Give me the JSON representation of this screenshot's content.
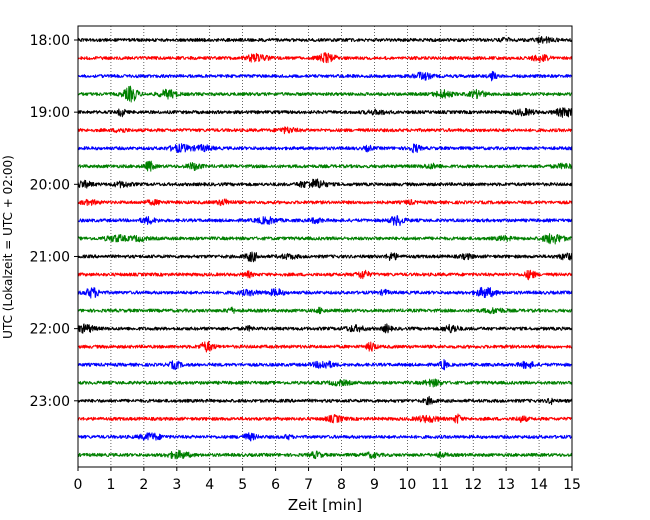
{
  "chart_data": {
    "type": "line",
    "title": "",
    "xlabel": "Zeit  [min]",
    "ylabel": "UTC (Lokalzeit = UTC + 02:00)",
    "xlim": [
      0,
      15
    ],
    "x_ticks": [
      0,
      1,
      2,
      3,
      4,
      5,
      6,
      7,
      8,
      9,
      10,
      11,
      12,
      13,
      14,
      15
    ],
    "grid": "vertical, dotted",
    "y_ticks": [
      "18:00",
      "19:00",
      "20:00",
      "21:00",
      "22:00",
      "23:00"
    ],
    "trace_interval_minutes": 15,
    "trace_colors": [
      "#000000",
      "#ff0000",
      "#0000ff",
      "#008000"
    ],
    "traces": [
      {
        "start": "18:00",
        "color": "#000000"
      },
      {
        "start": "18:15",
        "color": "#ff0000"
      },
      {
        "start": "18:30",
        "color": "#0000ff"
      },
      {
        "start": "18:45",
        "color": "#008000"
      },
      {
        "start": "19:00",
        "color": "#000000"
      },
      {
        "start": "19:15",
        "color": "#ff0000"
      },
      {
        "start": "19:30",
        "color": "#0000ff"
      },
      {
        "start": "19:45",
        "color": "#008000"
      },
      {
        "start": "20:00",
        "color": "#000000"
      },
      {
        "start": "20:15",
        "color": "#ff0000"
      },
      {
        "start": "20:30",
        "color": "#0000ff"
      },
      {
        "start": "20:45",
        "color": "#008000"
      },
      {
        "start": "21:00",
        "color": "#000000"
      },
      {
        "start": "21:15",
        "color": "#ff0000"
      },
      {
        "start": "21:30",
        "color": "#0000ff"
      },
      {
        "start": "21:45",
        "color": "#008000"
      },
      {
        "start": "22:00",
        "color": "#000000"
      },
      {
        "start": "22:15",
        "color": "#ff0000"
      },
      {
        "start": "22:30",
        "color": "#0000ff"
      },
      {
        "start": "22:45",
        "color": "#008000"
      },
      {
        "start": "23:00",
        "color": "#000000"
      },
      {
        "start": "23:15",
        "color": "#ff0000"
      },
      {
        "start": "23:30",
        "color": "#0000ff"
      },
      {
        "start": "23:45",
        "color": "#008000"
      }
    ]
  }
}
